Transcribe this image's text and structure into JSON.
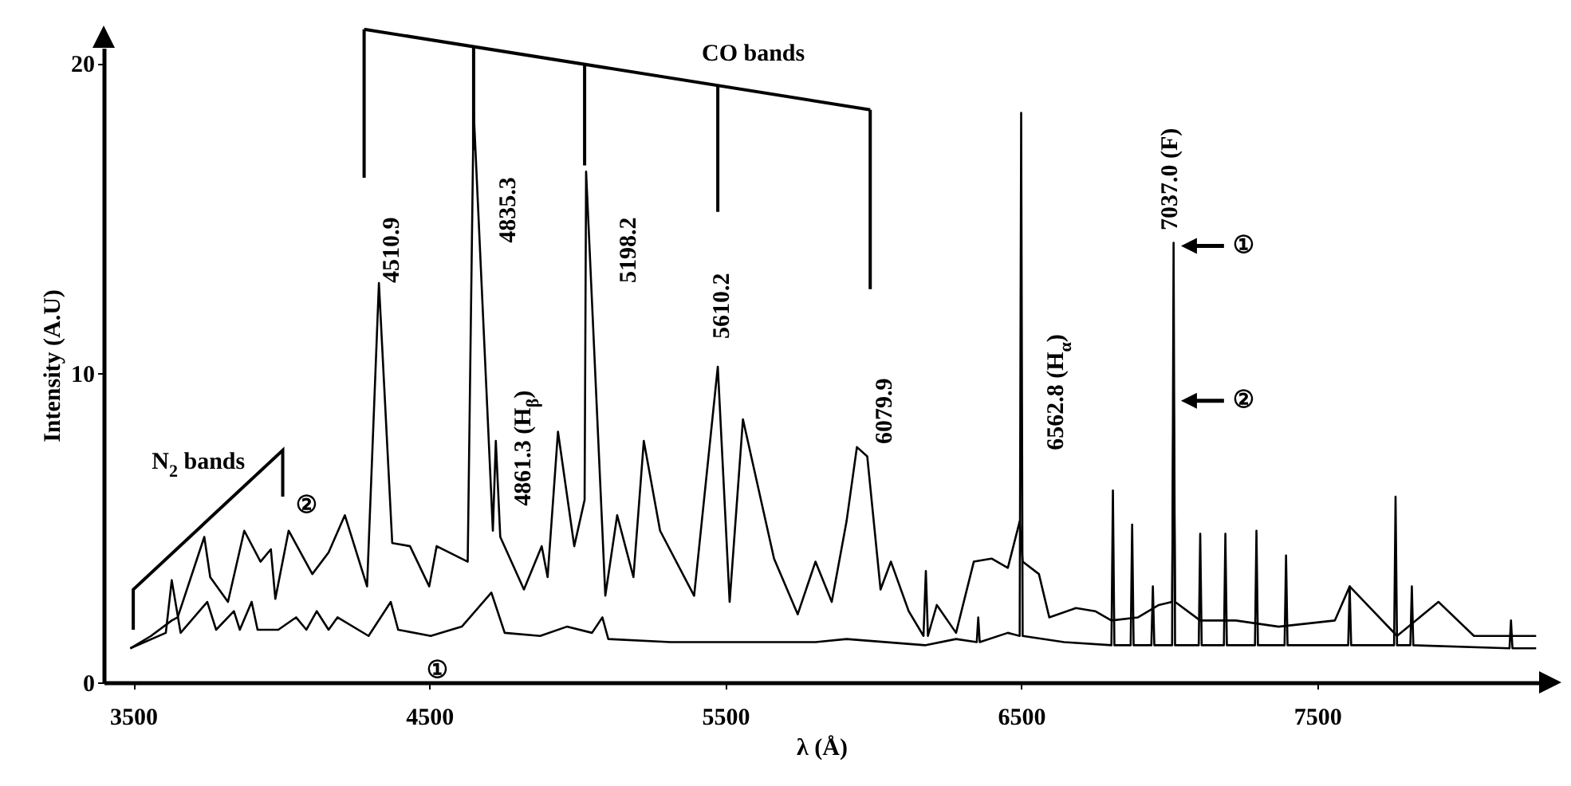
{
  "chart_data": {
    "type": "line",
    "xlabel": "λ (Å)",
    "ylabel": "Intensity (A.U)",
    "xlim": [
      3400,
      8250
    ],
    "ylim": [
      0,
      20.5
    ],
    "xticks": [
      3500,
      4500,
      5500,
      6500,
      7500
    ],
    "yticks": [
      0,
      10,
      20
    ],
    "annotations": [
      "4510.9",
      "4835.3",
      "4861.3 (H$_{β}$)",
      "5198.2",
      "5610.2",
      "6079.9",
      "6562.8 (H$_{α}$)",
      "7037.0 (F)",
      "CO bands",
      "N$_{2}$ bands",
      "②",
      "①",
      "①",
      "②"
    ],
    "series": [
      {
        "color": "#000000",
        "x": [
          3490,
          3560,
          3630,
          3650,
          3740,
          3760,
          3820,
          3875,
          3930,
          3965,
          3980,
          4025,
          4105,
          4160,
          4215,
          4290,
          4330,
          4375,
          4435,
          4500,
          4525,
          4630,
          4650,
          4715,
          4725,
          4740,
          4820,
          4880,
          4900,
          4935,
          4990,
          5025,
          5030,
          5095,
          5135,
          5190,
          5225,
          5280,
          5395,
          5475,
          5515,
          5560,
          5665,
          5745,
          5805,
          5860,
          5910,
          5945,
          5980,
          6025,
          6060,
          6120,
          6170,
          6178,
          6185,
          6215,
          6280,
          6340,
          6400,
          6455,
          6495,
          6505,
          6560,
          6595,
          6685,
          6750,
          6805,
          6895,
          6965,
          7010,
          7015,
          7020,
          7105,
          7225,
          7370,
          7560,
          7610,
          7770,
          7910,
          8030,
          8240
        ],
        "values": [
          1.1,
          1.5,
          2.0,
          2.1,
          4.7,
          3.4,
          2.6,
          4.9,
          3.9,
          4.3,
          2.7,
          4.9,
          3.5,
          4.2,
          5.4,
          3.1,
          12.9,
          4.5,
          4.4,
          3.1,
          4.4,
          3.9,
          18.5,
          4.9,
          7.8,
          4.7,
          3.0,
          4.4,
          3.4,
          8.1,
          4.4,
          5.9,
          16.5,
          2.8,
          5.4,
          3.4,
          7.8,
          4.9,
          2.8,
          10.2,
          2.6,
          8.5,
          4.0,
          2.2,
          3.9,
          2.6,
          5.2,
          7.6,
          7.3,
          3.0,
          3.9,
          2.3,
          1.5,
          3.6,
          1.5,
          2.5,
          1.6,
          3.9,
          4.0,
          3.7,
          5.2,
          3.9,
          3.5,
          2.1,
          2.4,
          2.3,
          2.0,
          2.1,
          2.5,
          2.6,
          9.3,
          2.6,
          2.0,
          2.0,
          1.8,
          2.0,
          3.1,
          1.5,
          2.6,
          1.5,
          1.5
        ]
      },
      {
        "color": "#000000",
        "x": [
          3490,
          3610,
          3630,
          3660,
          3750,
          3780,
          3840,
          3860,
          3900,
          3920,
          3990,
          4050,
          4085,
          4120,
          4160,
          4190,
          4295,
          4370,
          4395,
          4505,
          4610,
          4710,
          4755,
          4875,
          4965,
          5050,
          5085,
          5105,
          5315,
          5530,
          5805,
          5910,
          6175,
          6280,
          6350,
          6355,
          6360,
          6455,
          6495,
          6500,
          6505,
          6645,
          6805,
          6810,
          6815,
          6870,
          6875,
          6880,
          6940,
          6945,
          6950,
          7010,
          7015,
          7020,
          7100,
          7105,
          7110,
          7185,
          7190,
          7195,
          7290,
          7295,
          7300,
          7390,
          7395,
          7400,
          7605,
          7610,
          7615,
          7760,
          7765,
          7770,
          7815,
          7820,
          7825,
          8150,
          8155,
          8160,
          8240
        ],
        "values": [
          1.1,
          1.6,
          3.3,
          1.6,
          2.6,
          1.7,
          2.3,
          1.7,
          2.6,
          1.7,
          1.7,
          2.1,
          1.7,
          2.3,
          1.7,
          2.1,
          1.5,
          2.6,
          1.7,
          1.5,
          1.8,
          2.9,
          1.6,
          1.5,
          1.8,
          1.6,
          2.1,
          1.4,
          1.3,
          1.3,
          1.3,
          1.4,
          1.2,
          1.4,
          1.3,
          2.1,
          1.3,
          1.6,
          1.5,
          18.4,
          1.5,
          1.3,
          1.2,
          6.2,
          1.2,
          1.2,
          5.1,
          1.2,
          1.2,
          3.1,
          1.2,
          1.2,
          14.2,
          1.2,
          1.2,
          4.8,
          1.2,
          1.2,
          4.8,
          1.2,
          1.2,
          4.9,
          1.2,
          1.2,
          4.1,
          1.2,
          1.2,
          3.1,
          1.2,
          1.2,
          6.0,
          1.2,
          1.2,
          3.1,
          1.2,
          1.1,
          2.0,
          1.1,
          1.1
        ]
      }
    ]
  }
}
